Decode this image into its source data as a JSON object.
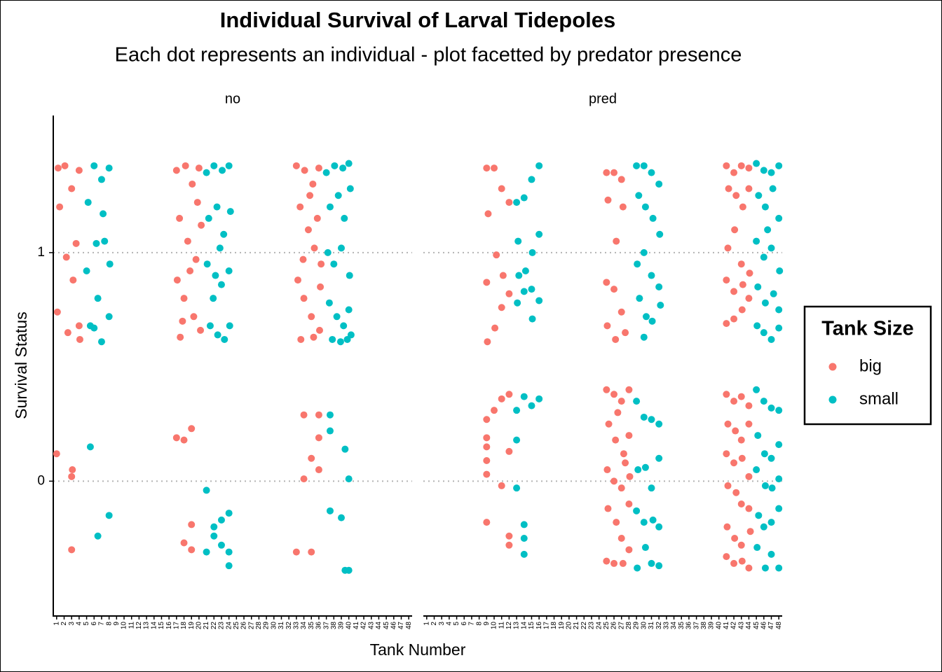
{
  "figure": {
    "title": "Individual Survival of Larval Tidepoles",
    "subtitle": "Each dot represents an individual - plot facetted by predator presence",
    "x_label": "Tank Number",
    "y_label": "Survival Status",
    "legend_title": "Tank Size",
    "legend_position": "right"
  },
  "chart_data": [
    {
      "type": "scatter",
      "facet": "no",
      "xlim": [
        0.55,
        48.45
      ],
      "ylim": [
        -0.59,
        1.6
      ],
      "xticks": [
        1,
        2,
        3,
        4,
        5,
        6,
        7,
        8,
        9,
        10,
        11,
        12,
        13,
        14,
        15,
        16,
        17,
        18,
        19,
        20,
        21,
        22,
        23,
        24,
        25,
        26,
        27,
        28,
        29,
        30,
        31,
        32,
        33,
        34,
        35,
        36,
        37,
        38,
        39,
        40,
        41,
        42,
        43,
        44,
        45,
        46,
        47,
        48
      ],
      "yticks": [
        0,
        1
      ],
      "grid": true,
      "series": [
        {
          "name": "big",
          "color": "#f8766d",
          "x": [
            1.2,
            2.1,
            3.0,
            4.0,
            1.4,
            2.3,
            3.2,
            4.1,
            1.1,
            2.5,
            4.0,
            3.6,
            1.0,
            3.1,
            3.0,
            3.0,
            17.0,
            18.2,
            19.1,
            20.0,
            17.4,
            18.5,
            19.6,
            20.3,
            17.1,
            18.0,
            19.3,
            20.2,
            17.5,
            18.8,
            19.8,
            17.8,
            17.0,
            18.0,
            19.0,
            19.0,
            18.0,
            19.0,
            33.0,
            34.1,
            35.2,
            36.0,
            33.5,
            34.6,
            35.4,
            36.3,
            33.2,
            34.0,
            35.0,
            36.1,
            33.6,
            34.8,
            35.8,
            36.2,
            33.9,
            35.3,
            34.0,
            36.0,
            36.0,
            35.0,
            36.0,
            34.0,
            33.0,
            35.0
          ],
          "values": [
            1.37,
            1.38,
            1.28,
            1.36,
            1.2,
            0.98,
            0.88,
            0.62,
            0.74,
            0.65,
            0.68,
            1.04,
            0.12,
            0.05,
            0.02,
            -0.3,
            1.36,
            1.38,
            1.3,
            1.37,
            1.15,
            1.05,
            0.97,
            1.12,
            0.88,
            0.8,
            0.72,
            0.66,
            0.63,
            0.92,
            1.22,
            0.7,
            0.19,
            0.18,
            0.23,
            -0.19,
            -0.27,
            -0.3,
            1.38,
            1.36,
            1.3,
            1.37,
            1.2,
            1.1,
            1.02,
            0.95,
            0.88,
            0.8,
            0.72,
            0.66,
            0.62,
            1.25,
            1.15,
            0.85,
            0.97,
            0.63,
            0.29,
            0.29,
            0.19,
            0.1,
            0.05,
            0.01,
            -0.31,
            -0.31
          ]
        },
        {
          "name": "small",
          "color": "#00bfc4",
          "x": [
            5.0,
            6.0,
            7.0,
            8.0,
            5.2,
            6.3,
            7.2,
            8.1,
            5.5,
            6.5,
            7.0,
            8.0,
            7.4,
            6.0,
            5.5,
            6.5,
            8.0,
            21.0,
            22.0,
            23.1,
            24.0,
            21.3,
            22.4,
            23.3,
            24.2,
            21.1,
            22.2,
            23.0,
            24.0,
            21.5,
            22.5,
            23.4,
            24.1,
            22.8,
            21.9,
            21.0,
            21.0,
            22.0,
            22.0,
            23.0,
            23.0,
            24.0,
            24.0,
            24.0,
            37.0,
            38.1,
            39.2,
            40.0,
            37.5,
            38.6,
            39.4,
            40.2,
            37.2,
            38.0,
            39.0,
            40.1,
            37.4,
            38.4,
            39.3,
            40.0,
            37.8,
            38.9,
            39.8,
            40.3,
            37.5,
            37.5,
            39.5,
            40.0,
            37.5,
            39.0,
            40.0,
            39.5
          ],
          "values": [
            0.92,
            1.38,
            1.32,
            1.37,
            1.22,
            1.04,
            1.17,
            0.95,
            0.68,
            0.8,
            0.61,
            0.72,
            1.05,
            0.67,
            0.15,
            -0.24,
            -0.15,
            1.35,
            1.38,
            1.36,
            1.38,
            1.15,
            1.2,
            1.08,
            1.18,
            0.95,
            0.9,
            0.86,
            0.92,
            0.68,
            0.64,
            0.62,
            0.68,
            1.02,
            0.8,
            -0.04,
            -0.31,
            -0.2,
            -0.24,
            -0.17,
            -0.28,
            -0.14,
            -0.31,
            -0.37,
            1.35,
            1.38,
            1.37,
            1.39,
            1.2,
            1.25,
            1.15,
            1.28,
            1.0,
            0.95,
            1.02,
            0.9,
            0.78,
            0.72,
            0.68,
            0.75,
            0.62,
            0.61,
            0.62,
            0.64,
            0.29,
            0.22,
            0.14,
            0.01,
            -0.13,
            -0.16,
            -0.39,
            -0.39
          ]
        }
      ]
    },
    {
      "type": "scatter",
      "facet": "pred",
      "xlim": [
        0.55,
        48.45
      ],
      "ylim": [
        -0.59,
        1.6
      ],
      "xticks": [
        1,
        2,
        3,
        4,
        5,
        6,
        7,
        8,
        9,
        10,
        11,
        12,
        13,
        14,
        15,
        16,
        17,
        18,
        19,
        20,
        21,
        22,
        23,
        24,
        25,
        26,
        27,
        28,
        29,
        30,
        31,
        32,
        33,
        34,
        35,
        36,
        37,
        38,
        39,
        40,
        41,
        42,
        43,
        44,
        45,
        46,
        47,
        48
      ],
      "yticks": [
        0,
        1
      ],
      "grid": true,
      "series": [
        {
          "color": "#f8766d",
          "x": [
            9.0,
            10.0,
            11.0,
            12.0,
            9.2,
            10.3,
            11.2,
            12.0,
            9.0,
            10.1,
            11.0,
            9.1,
            9.0,
            9.0,
            9.0,
            9.0,
            9.0,
            9.0,
            10.0,
            11.0,
            12.0,
            11.0,
            12.0,
            12.0,
            12.0,
            25.0,
            26.0,
            27.0,
            25.2,
            26.3,
            27.2,
            25.0,
            26.0,
            27.0,
            25.1,
            26.2,
            27.5,
            25.0,
            26.0,
            27.0,
            28.0,
            25.3,
            26.2,
            27.3,
            28.0,
            25.1,
            26.0,
            27.0,
            28.1,
            25.2,
            26.3,
            27.0,
            28.0,
            25.0,
            26.0,
            27.2,
            28.0,
            26.5,
            27.5,
            41.0,
            42.0,
            43.0,
            44.0,
            41.3,
            42.3,
            43.2,
            44.0,
            41.2,
            42.1,
            43.0,
            44.1,
            41.0,
            42.0,
            43.1,
            44.0,
            41.0,
            42.0,
            43.2,
            41.0,
            42.0,
            43.0,
            44.0,
            41.2,
            42.2,
            43.0,
            44.0,
            41.0,
            42.0,
            43.1,
            44.0,
            41.2,
            42.3,
            43.0,
            44.0,
            41.1,
            42.1,
            43.0,
            44.2,
            41.0,
            42.0,
            43.1,
            44.0
          ],
          "values": [
            1.37,
            1.37,
            1.28,
            1.22,
            1.17,
            0.99,
            0.9,
            0.82,
            0.87,
            0.67,
            0.76,
            0.61,
            0.27,
            0.19,
            0.15,
            0.09,
            0.03,
            -0.18,
            0.31,
            0.36,
            0.38,
            -0.02,
            -0.24,
            -0.28,
            0.13,
            1.35,
            1.35,
            1.32,
            1.23,
            1.05,
            1.2,
            0.87,
            0.84,
            0.74,
            0.68,
            0.62,
            0.65,
            0.4,
            0.38,
            0.35,
            0.4,
            0.25,
            0.18,
            0.12,
            0.2,
            0.05,
            0.0,
            -0.03,
            0.02,
            -0.12,
            -0.18,
            -0.25,
            -0.1,
            -0.35,
            -0.36,
            -0.36,
            -0.3,
            0.3,
            0.08,
            1.38,
            1.35,
            1.38,
            1.37,
            1.28,
            1.25,
            1.2,
            1.28,
            1.02,
            1.1,
            0.95,
            0.91,
            0.88,
            0.83,
            0.75,
            0.8,
            0.69,
            0.71,
            0.86,
            0.38,
            0.35,
            0.37,
            0.33,
            0.25,
            0.22,
            0.18,
            0.25,
            0.12,
            0.08,
            0.1,
            0.02,
            -0.02,
            -0.05,
            -0.1,
            -0.12,
            -0.2,
            -0.25,
            -0.28,
            -0.22,
            -0.33,
            -0.36,
            -0.35,
            -0.38
          ]
        },
        {
          "color": "#00bfc4",
          "x": [
            13.0,
            14.0,
            15.0,
            16.0,
            13.2,
            14.2,
            15.1,
            16.0,
            13.3,
            14.0,
            15.0,
            16.0,
            13.1,
            15.1,
            13.0,
            14.0,
            15.0,
            16.0,
            13.0,
            13.0,
            14.0,
            14.0,
            14.0,
            29.0,
            30.0,
            31.0,
            32.0,
            29.3,
            30.2,
            31.2,
            32.1,
            29.1,
            30.0,
            31.0,
            32.0,
            29.4,
            30.3,
            31.1,
            32.2,
            30.0,
            29.0,
            30.0,
            31.0,
            32.0,
            29.2,
            30.2,
            31.0,
            32.0,
            29.0,
            30.0,
            31.2,
            32.0,
            29.1,
            30.2,
            31.0,
            32.0,
            45.0,
            46.0,
            47.0,
            48.0,
            45.3,
            46.2,
            47.2,
            48.0,
            45.0,
            46.0,
            47.0,
            48.1,
            45.2,
            46.2,
            47.3,
            48.0,
            45.1,
            46.0,
            47.0,
            48.0,
            46.5,
            45.0,
            46.0,
            47.0,
            48.0,
            45.2,
            46.1,
            47.0,
            48.0,
            45.0,
            46.2,
            47.1,
            48.0,
            45.3,
            46.0,
            47.0,
            48.0,
            45.1,
            46.2,
            47.0,
            48.0
          ],
          "values": [
            1.22,
            1.24,
            1.32,
            1.38,
            1.05,
            0.92,
            1.0,
            1.08,
            0.9,
            0.83,
            0.84,
            0.79,
            0.78,
            0.71,
            0.31,
            0.37,
            0.33,
            0.36,
            0.18,
            -0.03,
            -0.19,
            -0.25,
            -0.32,
            1.38,
            1.38,
            1.35,
            1.3,
            1.25,
            1.2,
            1.15,
            1.08,
            0.95,
            1.0,
            0.9,
            0.85,
            0.8,
            0.72,
            0.7,
            0.77,
            0.63,
            0.35,
            0.28,
            0.27,
            0.25,
            0.05,
            0.06,
            -0.03,
            0.1,
            -0.13,
            -0.18,
            -0.17,
            -0.2,
            -0.38,
            -0.29,
            -0.36,
            -0.37,
            1.39,
            1.36,
            1.35,
            1.38,
            1.25,
            1.2,
            1.28,
            1.15,
            1.05,
            0.98,
            1.02,
            0.92,
            0.85,
            0.78,
            0.82,
            0.75,
            0.68,
            0.65,
            0.62,
            0.67,
            1.1,
            0.4,
            0.35,
            0.32,
            0.31,
            0.2,
            0.12,
            0.1,
            0.16,
            0.05,
            -0.02,
            -0.03,
            0.01,
            -0.15,
            -0.2,
            -0.18,
            -0.12,
            -0.29,
            -0.38,
            -0.32,
            -0.38
          ]
        }
      ]
    }
  ]
}
